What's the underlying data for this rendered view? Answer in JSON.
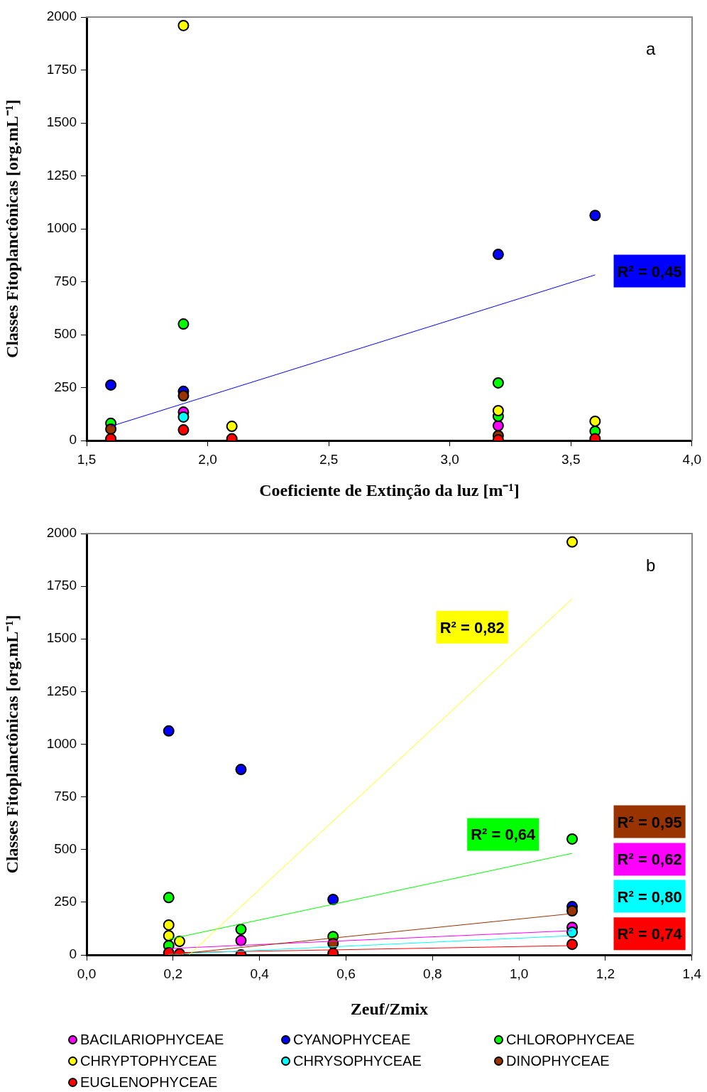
{
  "chart_data": [
    {
      "type": "scatter",
      "xlabel": "Coeficiente de Extinção da luz [m⁻¹]",
      "ylabel": "Classes Fitoplanctônicas [org.mL⁻¹]",
      "xlim": [
        1.5,
        4.0
      ],
      "xticks": [
        {
          "value": 1.5,
          "label": "1,5"
        },
        {
          "value": 2.0,
          "label": "2,0"
        },
        {
          "value": 2.5,
          "label": "2,5"
        },
        {
          "value": 3.0,
          "label": "3,0"
        },
        {
          "value": 3.5,
          "label": "3,5"
        },
        {
          "value": 4.0,
          "label": "4,0"
        }
      ],
      "ylim": [
        0,
        2000
      ],
      "yticks": [
        0,
        250,
        500,
        750,
        1000,
        1250,
        1500,
        1750,
        2000
      ],
      "grid": false,
      "legend": false,
      "marker": "circle",
      "series": [
        {
          "color": "#ff00ff",
          "x": [
            1.9,
            3.2
          ],
          "values": [
            134,
            70
          ]
        },
        {
          "color": "#0000ff",
          "x": [
            1.6,
            1.9,
            3.2,
            3.6
          ],
          "values": [
            262,
            232,
            879,
            1063
          ]
        },
        {
          "color": "#00ff00",
          "x": [
            1.6,
            1.9,
            3.2,
            3.2,
            3.6
          ],
          "values": [
            81,
            550,
            272,
            114,
            44
          ]
        },
        {
          "color": "#ffff00",
          "x": [
            1.9,
            2.1,
            3.2,
            3.6
          ],
          "values": [
            1960,
            67,
            141,
            91
          ]
        },
        {
          "color": "#00ffff",
          "x": [
            1.9
          ],
          "values": [
            111
          ]
        },
        {
          "color": "#993300",
          "x": [
            1.6,
            1.9,
            3.2
          ],
          "values": [
            54,
            211,
            23
          ]
        },
        {
          "color": "#ff0000",
          "x": [
            1.6,
            1.9,
            2.1,
            3.2,
            3.6
          ],
          "values": [
            8,
            50,
            8,
            3,
            8
          ]
        },
        {
          "type": "line",
          "marker": "none",
          "color": "#0000ff",
          "x": [
            1.6,
            3.6
          ],
          "values": [
            67,
            782
          ]
        }
      ],
      "annotations": [
        "a",
        "R² = 0,45"
      ]
    },
    {
      "type": "scatter",
      "xlabel": "Zeuf/Zmix",
      "ylabel": "Classes Fitoplanctônicas [org.mL⁻¹]",
      "xlim": [
        0,
        1.4
      ],
      "xticks": [
        {
          "value": 0,
          "label": "0,0"
        },
        {
          "value": 0.2,
          "label": "0,2"
        },
        {
          "value": 0.4,
          "label": "0,4"
        },
        {
          "value": 0.6,
          "label": "0,6"
        },
        {
          "value": 0.8,
          "label": "0,8"
        },
        {
          "value": 1.0,
          "label": "1,0"
        },
        {
          "value": 1.2,
          "label": "1,2"
        },
        {
          "value": 1.4,
          "label": "1,4"
        }
      ],
      "ylim": [
        0,
        2000
      ],
      "yticks": [
        0,
        250,
        500,
        750,
        1000,
        1250,
        1500,
        1750,
        2000
      ],
      "grid": false,
      "legend": "bottom",
      "marker": "circle",
      "series": [
        {
          "name": "BACILARIOPHYCEAE",
          "color": "#ff00ff",
          "x": [
            0.357,
            1.123
          ],
          "values": [
            68,
            131
          ]
        },
        {
          "name": "CYANOPHYCEAE",
          "color": "#0000ff",
          "x": [
            0.19,
            0.357,
            0.57,
            1.123
          ],
          "values": [
            1063,
            880,
            263,
            229
          ]
        },
        {
          "name": "CHLOROPHYCEAE",
          "color": "#00ff00",
          "x": [
            0.19,
            0.19,
            0.357,
            0.57,
            1.123
          ],
          "values": [
            272,
            44,
            121,
            87,
            550
          ]
        },
        {
          "name": "CHRYPTOPHYCEAE",
          "color": "#ffff00",
          "x": [
            0.19,
            0.19,
            0.215,
            1.123
          ],
          "values": [
            142,
            91,
            64,
            1960
          ]
        },
        {
          "name": "CHRYSOPHYCEAE",
          "color": "#00ffff",
          "x": [
            1.123
          ],
          "values": [
            108
          ]
        },
        {
          "name": "DINOPHYCEAE",
          "color": "#993300",
          "x": [
            0.57,
            1.123
          ],
          "values": [
            54,
            209
          ]
        },
        {
          "name": "EUGLENOPHYCEAE",
          "color": "#ff0000",
          "x": [
            0.19,
            0.215,
            0.357,
            0.57,
            1.123
          ],
          "values": [
            10,
            5,
            0,
            7,
            50
          ]
        },
        {
          "type": "line",
          "marker": "none",
          "color": "#ffff00",
          "x": [
            0.237,
            1.123
          ],
          "values": [
            0,
            1690
          ]
        },
        {
          "type": "line",
          "marker": "none",
          "color": "#00ff00",
          "x": [
            0.19,
            1.123
          ],
          "values": [
            74,
            482
          ]
        },
        {
          "type": "line",
          "marker": "none",
          "color": "#993300",
          "x": [
            0.19,
            1.123
          ],
          "values": [
            0,
            196
          ]
        },
        {
          "type": "line",
          "marker": "none",
          "color": "#ff00ff",
          "x": [
            0.19,
            1.123
          ],
          "values": [
            30,
            115
          ]
        },
        {
          "type": "line",
          "marker": "none",
          "color": "#00ffff",
          "x": [
            0.19,
            1.123
          ],
          "values": [
            2,
            91
          ]
        },
        {
          "type": "line",
          "marker": "none",
          "color": "#ff0000",
          "x": [
            0.19,
            1.123
          ],
          "values": [
            10,
            44
          ]
        }
      ],
      "annotations": [
        "b",
        "R² = 0,82",
        "R² = 0,64",
        "R² = 0,95",
        "R² = 0,62",
        "R² = 0,80",
        "R² = 0,74"
      ]
    }
  ]
}
